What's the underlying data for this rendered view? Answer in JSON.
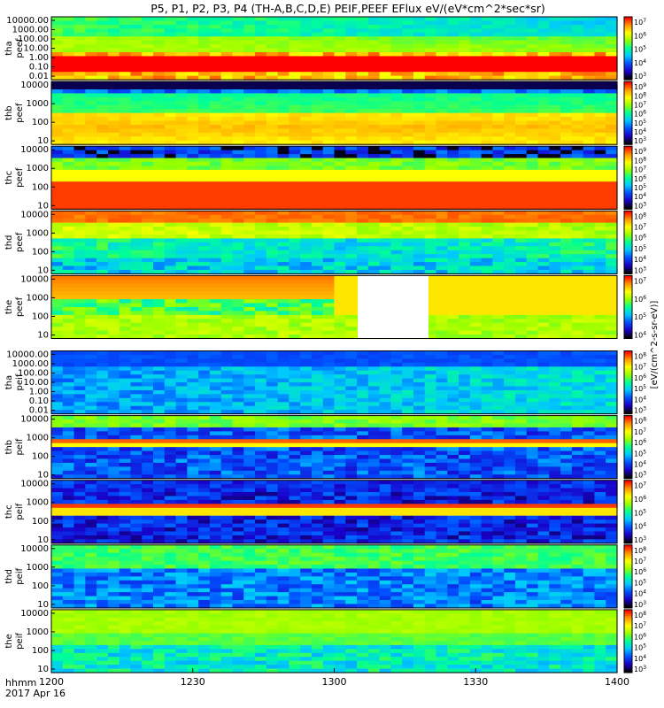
{
  "chart_data": {
    "type": "heatmap",
    "title": "P5, P1, P2, P3, P4 (TH-A,B,C,D,E) PEIF,PEEF EFlux eV/(eV*cm^2*sec*sr)",
    "colorbar_label": "[eV/(cm^2-s-sr-eV)]",
    "x": {
      "label": "hhmm",
      "date_label": "2017 Apr 16",
      "ticks": [
        "1200",
        "1230",
        "1300",
        "1330",
        "1400"
      ],
      "range": [
        "12:00",
        "14:00"
      ]
    },
    "colorscale": [
      "#000000",
      "#1a00c8",
      "#0050ff",
      "#00c8ff",
      "#00ff96",
      "#96ff00",
      "#ffff00",
      "#ff9600",
      "#ff0000"
    ],
    "panels": [
      {
        "id": "tha-peef",
        "label": [
          "tha",
          "peef"
        ],
        "y_scale": "log",
        "y_ticks": [
          "10000.00",
          "1000.00",
          "100.00",
          "10.00",
          "1.00",
          "0.10",
          "0.01"
        ],
        "cbar_ticks": [
          "10^7",
          "10^6",
          "10^5",
          "10^4",
          "10^3"
        ],
        "gap": null
      },
      {
        "id": "thb-peef",
        "label": [
          "thb",
          "peef"
        ],
        "y_scale": "log",
        "y_ticks": [
          "10000",
          "1000",
          "100",
          "10"
        ],
        "cbar_ticks": [
          "10^9",
          "10^8",
          "10^7",
          "10^6",
          "10^5",
          "10^4",
          "10^3"
        ],
        "gap": null
      },
      {
        "id": "thc-peef",
        "label": [
          "thc",
          "peef"
        ],
        "y_scale": "log",
        "y_ticks": [
          "10000",
          "1000",
          "100",
          "10"
        ],
        "cbar_ticks": [
          "10^9",
          "10^8",
          "10^7",
          "10^6",
          "10^5",
          "10^4",
          "10^3"
        ],
        "gap": null
      },
      {
        "id": "thd-peef",
        "label": [
          "thd",
          "peef"
        ],
        "y_scale": "log",
        "y_ticks": [
          "10000",
          "1000",
          "100",
          "10"
        ],
        "cbar_ticks": [
          "10^8",
          "10^7",
          "10^6",
          "10^5",
          "10^4",
          "10^3"
        ],
        "gap": null
      },
      {
        "id": "the-peef",
        "label": [
          "the",
          "peef"
        ],
        "y_scale": "log",
        "y_ticks": [
          "10000",
          "1000",
          "100",
          "10"
        ],
        "cbar_ticks": [
          "10^7",
          "10^6",
          "10^5",
          "10^4"
        ],
        "gap": [
          "13:05",
          "13:20"
        ]
      },
      {
        "id": "tha-peif",
        "label": [
          "tha",
          "peif"
        ],
        "y_scale": "log",
        "y_ticks": [
          "10000.00",
          "1000.00",
          "100.00",
          "10.00",
          "1.00",
          "0.10",
          "0.01"
        ],
        "cbar_ticks": [
          "10^8",
          "10^7",
          "10^6",
          "10^5",
          "10^4",
          "10^3"
        ],
        "gap": null
      },
      {
        "id": "thb-peif",
        "label": [
          "thb",
          "peif"
        ],
        "y_scale": "log",
        "y_ticks": [
          "10000",
          "1000",
          "100",
          "10"
        ],
        "cbar_ticks": [
          "10^8",
          "10^7",
          "10^6",
          "10^5",
          "10^4",
          "10^3"
        ],
        "gap": null
      },
      {
        "id": "thc-peif",
        "label": [
          "thc",
          "peif"
        ],
        "y_scale": "log",
        "y_ticks": [
          "10000",
          "1000",
          "100",
          "10"
        ],
        "cbar_ticks": [
          "10^7",
          "10^6",
          "10^5",
          "10^4",
          "10^3"
        ],
        "gap": null
      },
      {
        "id": "thd-peif",
        "label": [
          "thd",
          "peif"
        ],
        "y_scale": "log",
        "y_ticks": [
          "10000",
          "1000",
          "100",
          "10"
        ],
        "cbar_ticks": [
          "10^8",
          "10^7",
          "10^6",
          "10^5",
          "10^4",
          "10^3"
        ],
        "gap": null
      },
      {
        "id": "the-peif",
        "label": [
          "the",
          "peif"
        ],
        "y_scale": "log",
        "y_ticks": [
          "10000",
          "1000",
          "100",
          "10"
        ],
        "cbar_ticks": [
          "10^8",
          "10^7",
          "10^6",
          "10^5",
          "10^4",
          "10^3"
        ],
        "gap": null
      }
    ]
  }
}
